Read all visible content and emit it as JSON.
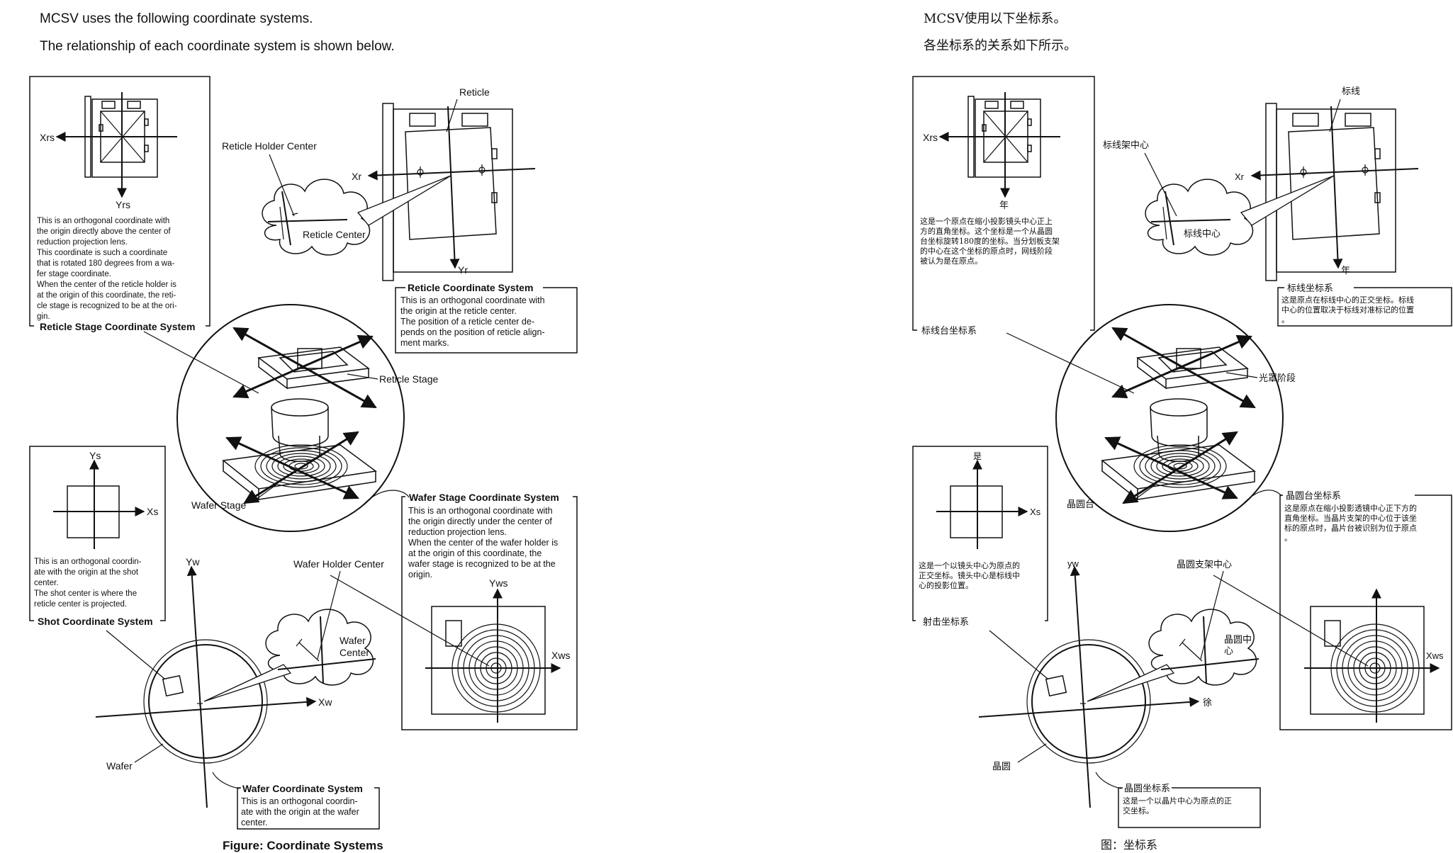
{
  "en": {
    "intro1": "MCSV uses the following coordinate systems.",
    "intro2": "The relationship of each coordinate system is shown below.",
    "labels": {
      "xrs": "Xrs",
      "yrs": "Yrs",
      "reticle": "Reticle",
      "reticle_holder_center": "Reticle Holder Center",
      "xr": "Xr",
      "yr": "Yr",
      "reticle_center": "Reticle Center",
      "reticle_stage": "Reticle Stage",
      "wafer_stage": "Wafer Stage",
      "ys": "Ys",
      "xs": "Xs",
      "yw": "Yw",
      "xw": "Xw",
      "wafer_holder_center": "Wafer Holder Center",
      "wafer_center_1": "Wafer",
      "wafer_center_2": "Center",
      "yws": "Yws",
      "xws": "Xws",
      "wafer": "Wafer"
    },
    "reticle_stage_cs": {
      "title": "Reticle Stage Coordinate System",
      "lines": [
        "This is an orthogonal coordinate with",
        "the origin directly above the center of",
        "reduction projection lens.",
        "This coordinate is such a coordinate",
        "that is rotated 180 degrees from a wa-",
        "fer stage coordinate.",
        "When the center of the reticle holder is",
        "at the origin of this coordinate, the reti-",
        "cle stage is recognized to be at the ori-",
        "gin."
      ]
    },
    "reticle_cs": {
      "title": "Reticle Coordinate System",
      "lines": [
        "This is an orthogonal coordinate with",
        "the origin at the reticle center.",
        "The position of a reticle center de-",
        "pends on the position of reticle align-",
        "ment marks."
      ]
    },
    "wafer_stage_cs": {
      "title": "Wafer Stage Coordinate System",
      "lines": [
        "This is an orthogonal coordinate with",
        "the origin directly under the center of",
        "reduction projection lens.",
        "When the center of the wafer holder is",
        "at the origin of this coordinate, the",
        "wafer stage is recognized to be at the",
        "origin."
      ]
    },
    "shot_cs": {
      "title": "Shot Coordinate System",
      "lines": [
        "This is an orthogonal coordin-",
        "ate with the origin at the shot",
        "center.",
        "The shot center is where the",
        "reticle center is projected."
      ]
    },
    "wafer_cs": {
      "title": "Wafer Coordinate System",
      "lines": [
        "This is an orthogonal coordin-",
        "ate with the origin at the wafer",
        "center."
      ]
    },
    "figure_caption": "Figure:  Coordinate Systems"
  },
  "cn": {
    "intro1": "MCSV使用以下坐标系。",
    "intro2": "各坐标系的关系如下所示。",
    "labels": {
      "xrs": "Xrs",
      "yrs": "年",
      "reticle": "标线",
      "reticle_holder_center": "标线架中心",
      "xr": "Xr",
      "yr": "年",
      "reticle_center": "标线中心",
      "reticle_stage": "光罩阶段",
      "wafer_stage": "晶圆台",
      "ys": "是",
      "xs": "Xs",
      "yw": "yw",
      "xw": "徐",
      "wafer_holder_center": "晶圆支架中心",
      "wafer_center_1": "晶圆中",
      "wafer_center_2": "心",
      "xws": "Xws",
      "wafer": "晶圆"
    },
    "reticle_stage_cs": {
      "title": "标线台坐标系",
      "lines": [
        "这是一个原点在缩小投影镜头中心正上",
        "方的直角坐标。这个坐标是一个从晶圆",
        "台坐标旋转180度的坐标。当分划板支架",
        "的中心在这个坐标的原点时，网线阶段",
        "被认为是在原点。"
      ]
    },
    "reticle_cs": {
      "title": "标线坐标系",
      "lines": [
        "这是原点在标线中心的正交坐标。标线",
        "中心的位置取决于标线对准标记的位置",
        "。"
      ]
    },
    "wafer_stage_cs": {
      "title": "晶圆台坐标系",
      "lines": [
        "这是原点在缩小投影透镜中心正下方的",
        "直角坐标。当晶片支架的中心位于该坐",
        "标的原点时，晶片台被识别为位于原点",
        "。"
      ]
    },
    "shot_cs": {
      "title": "射击坐标系",
      "lines": [
        "这是一个以镜头中心为原点的",
        "正交坐标。镜头中心是标线中",
        "心的投影位置。"
      ]
    },
    "wafer_cs": {
      "title": "晶圆坐标系",
      "lines": [
        "这是一个以晶片中心为原点的正",
        "交坐标。"
      ]
    },
    "figure_caption": "图：坐标系"
  }
}
